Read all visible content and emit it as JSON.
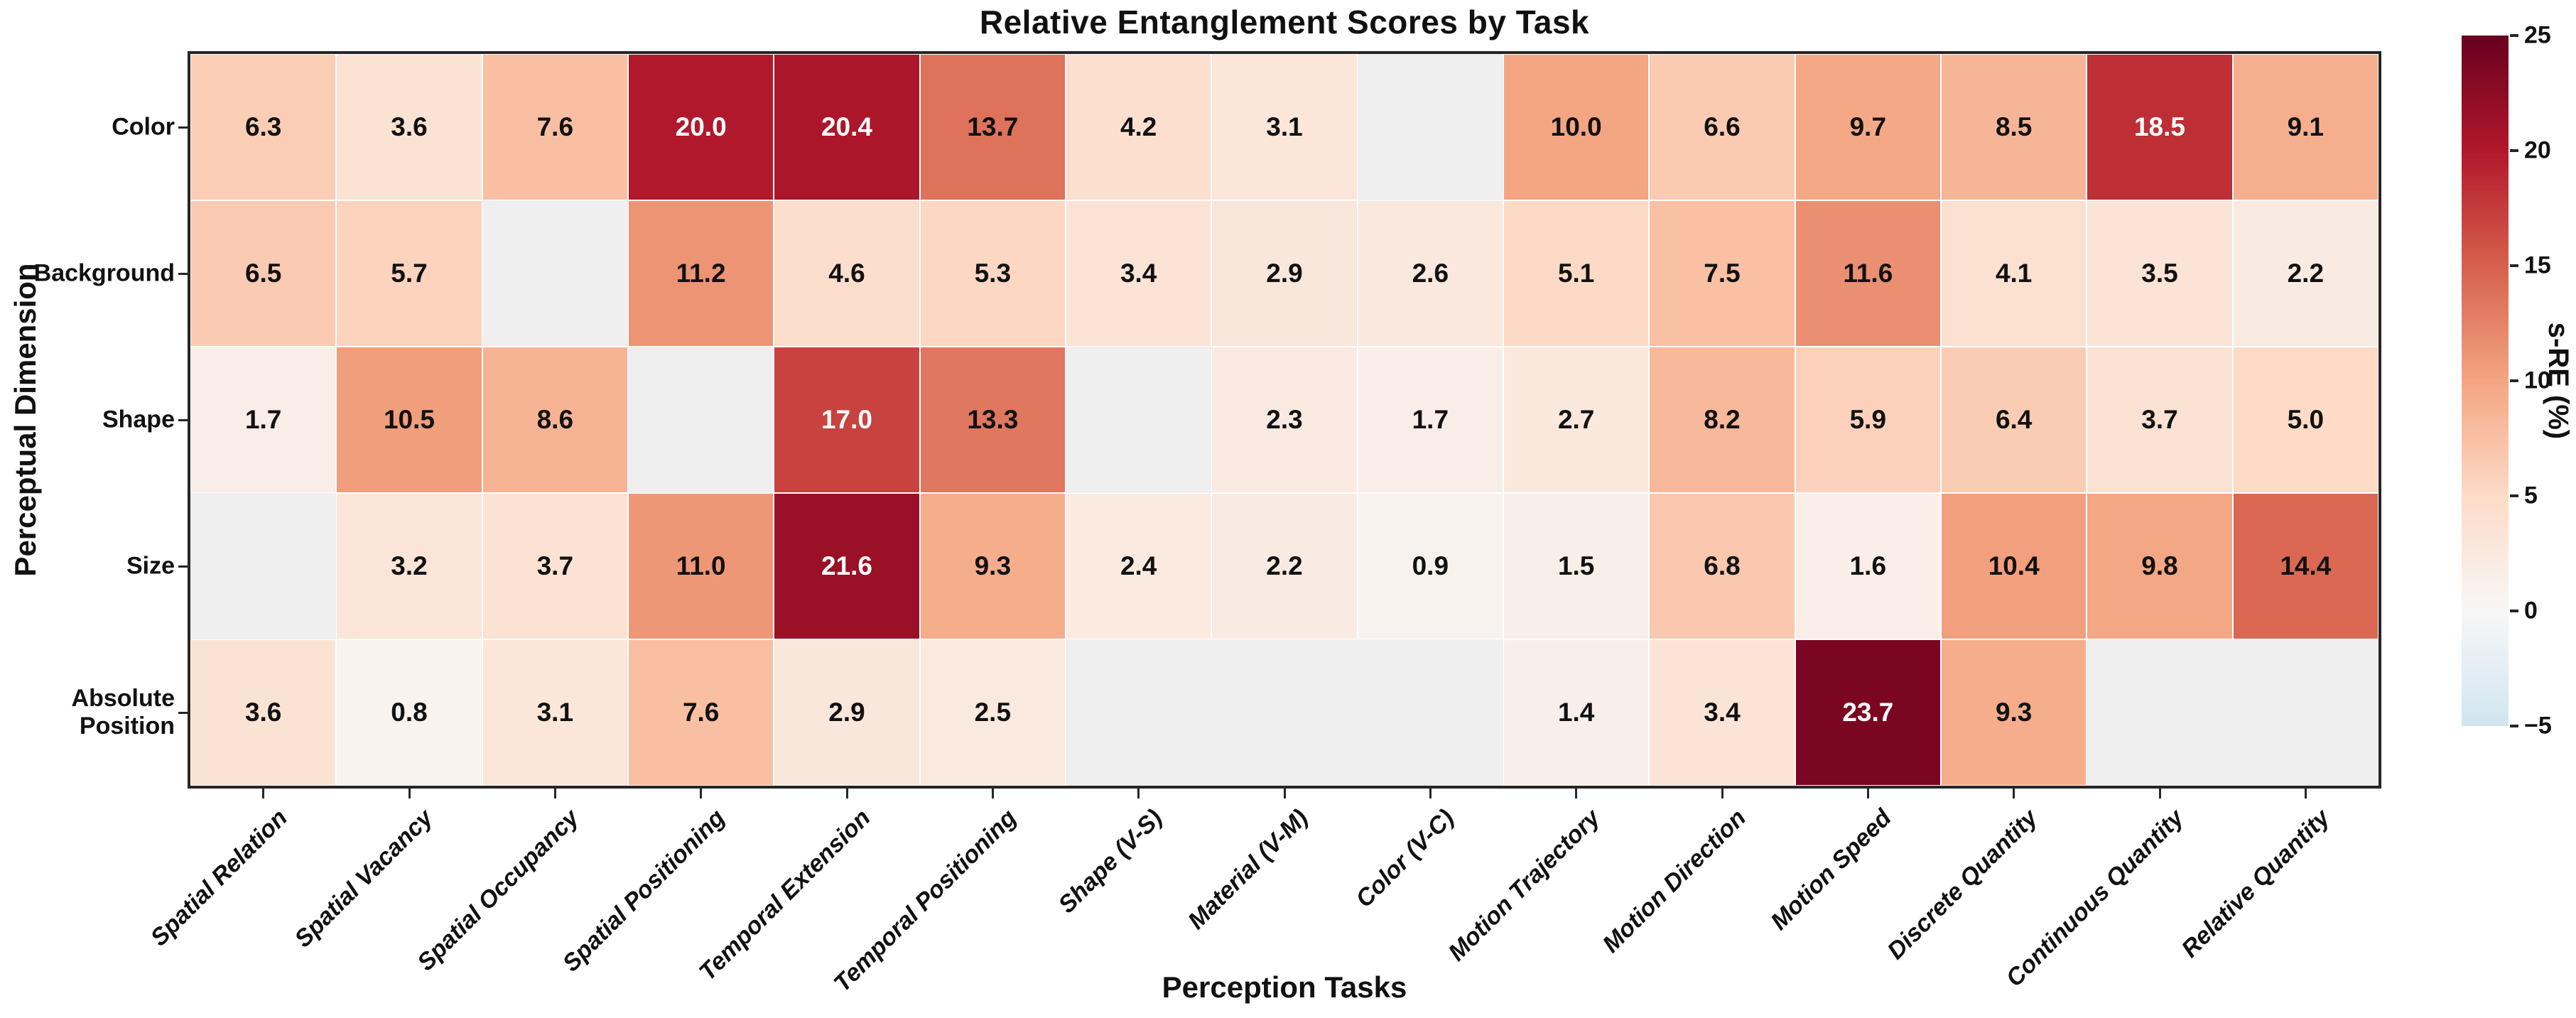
{
  "chart_data": {
    "type": "heatmap",
    "title": "Relative Entanglement Scores by Task",
    "xlabel": "Perception Tasks",
    "ylabel": "Perceptual Dimension",
    "columns": [
      "Spatial Relation",
      "Spatial Vacancy",
      "Spatial Occupancy",
      "Spatial Positioning",
      "Temporal Extension",
      "Temporal Positioning",
      "Shape (V-S)",
      "Material (V-M)",
      "Color (V-C)",
      "Motion Trajectory",
      "Motion Direction",
      "Motion Speed",
      "Discrete Quantity",
      "Continuous Quantity",
      "Relative Quantity"
    ],
    "rows": [
      "Color",
      "Background",
      "Shape",
      "Size",
      "Absolute Position"
    ],
    "values": [
      [
        6.3,
        3.6,
        7.6,
        20.0,
        20.4,
        13.7,
        4.2,
        3.1,
        null,
        10.0,
        6.6,
        9.7,
        8.5,
        18.5,
        9.1
      ],
      [
        6.5,
        5.7,
        null,
        11.2,
        4.6,
        5.3,
        3.4,
        2.9,
        2.6,
        5.1,
        7.5,
        11.6,
        4.1,
        3.5,
        2.2
      ],
      [
        1.7,
        10.5,
        8.6,
        null,
        17.0,
        13.3,
        null,
        2.3,
        1.7,
        2.7,
        8.2,
        5.9,
        6.4,
        3.7,
        5.0
      ],
      [
        null,
        3.2,
        3.7,
        11.0,
        21.6,
        9.3,
        2.4,
        2.2,
        0.9,
        1.5,
        6.8,
        1.6,
        10.4,
        9.8,
        14.4
      ],
      [
        3.6,
        0.8,
        3.1,
        7.6,
        2.9,
        2.5,
        null,
        null,
        null,
        1.4,
        3.4,
        23.7,
        9.3,
        null,
        null
      ]
    ],
    "colorbar": {
      "label": "s-RE (%)",
      "ticks": [
        25,
        20,
        15,
        10,
        5,
        0,
        -5
      ],
      "vmin": -5,
      "vmax": 25,
      "colormap": "RdBu_r"
    },
    "missing_color": "#efefef",
    "grid": false,
    "legend_position": "right-colorbar"
  }
}
